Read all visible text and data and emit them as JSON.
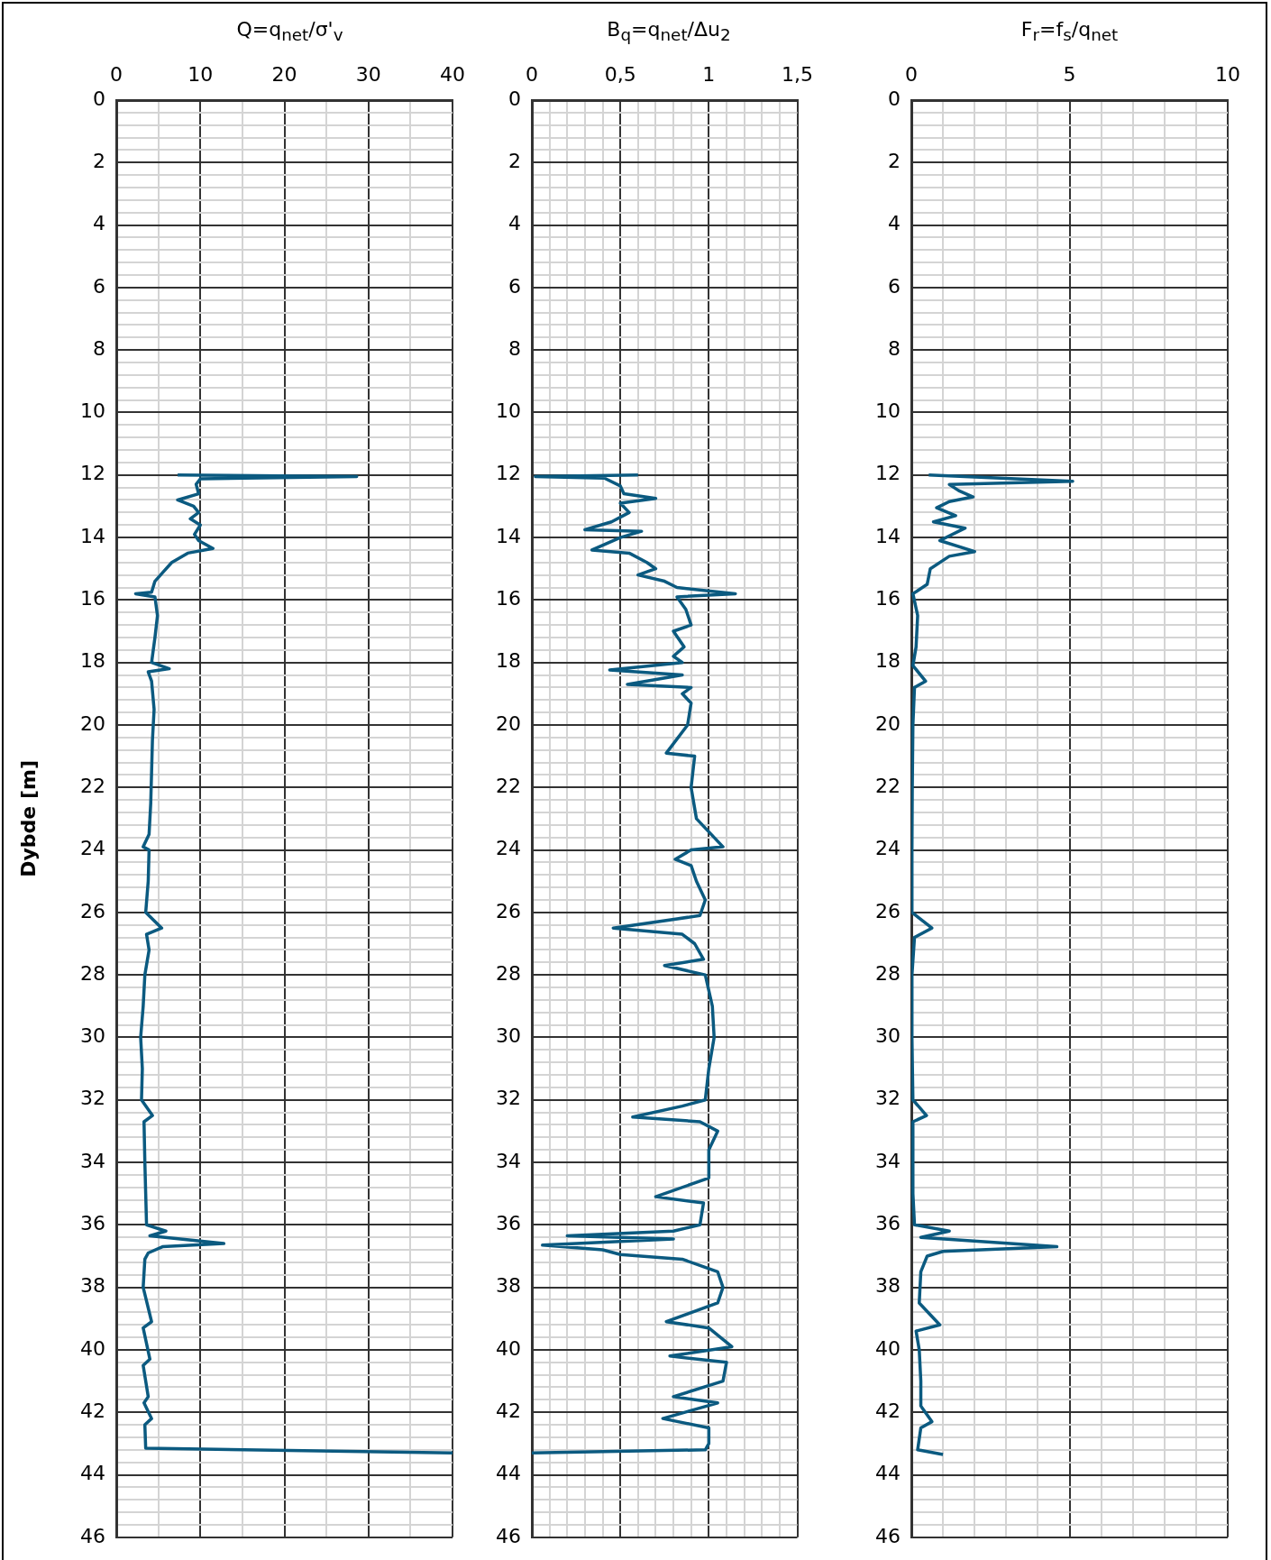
{
  "chart_data": [
    {
      "type": "line",
      "xlabel": "Q=q$_{net}$/σ'$_{v}$",
      "ylabel": "Dybde [m]",
      "grid": true,
      "xlim": [
        0,
        40
      ],
      "ylim": [
        46,
        0
      ],
      "xticks": [
        0,
        {
          "value": 5,
          "label": null
        },
        10,
        {
          "value": 15,
          "label": null
        },
        20,
        {
          "value": 25,
          "label": null
        },
        30,
        {
          "value": 35,
          "label": null
        },
        40
      ],
      "yticks": [
        0,
        {
          "value": 0.4,
          "label": null
        },
        {
          "value": 0.8,
          "label": null
        },
        {
          "value": 1.2,
          "label": null
        },
        {
          "value": 1.6,
          "label": null
        },
        2,
        {
          "value": 2.4,
          "label": null
        },
        {
          "value": 2.8,
          "label": null
        },
        {
          "value": 3.2,
          "label": null
        },
        {
          "value": 3.6,
          "label": null
        },
        4,
        {
          "value": 4.4,
          "label": null
        },
        {
          "value": 4.8,
          "label": null
        },
        {
          "value": 5.2,
          "label": null
        },
        {
          "value": 5.6,
          "label": null
        },
        6,
        {
          "value": 6.4,
          "label": null
        },
        {
          "value": 6.8,
          "label": null
        },
        {
          "value": 7.2,
          "label": null
        },
        {
          "value": 7.6,
          "label": null
        },
        8,
        {
          "value": 8.4,
          "label": null
        },
        {
          "value": 8.8,
          "label": null
        },
        {
          "value": 9.2,
          "label": null
        },
        {
          "value": 9.6,
          "label": null
        },
        10,
        {
          "value": 10.4,
          "label": null
        },
        {
          "value": 10.8,
          "label": null
        },
        {
          "value": 11.2,
          "label": null
        },
        {
          "value": 11.6,
          "label": null
        },
        12,
        {
          "value": 12.4,
          "label": null
        },
        {
          "value": 12.8,
          "label": null
        },
        {
          "value": 13.2,
          "label": null
        },
        {
          "value": 13.6,
          "label": null
        },
        14,
        {
          "value": 14.4,
          "label": null
        },
        {
          "value": 14.8,
          "label": null
        },
        {
          "value": 15.2,
          "label": null
        },
        {
          "value": 15.6,
          "label": null
        },
        16,
        {
          "value": 16.4,
          "label": null
        },
        {
          "value": 16.8,
          "label": null
        },
        {
          "value": 17.2,
          "label": null
        },
        {
          "value": 17.6,
          "label": null
        },
        18,
        {
          "value": 18.4,
          "label": null
        },
        {
          "value": 18.8,
          "label": null
        },
        {
          "value": 19.2,
          "label": null
        },
        {
          "value": 19.6,
          "label": null
        },
        20,
        {
          "value": 20.4,
          "label": null
        },
        {
          "value": 20.8,
          "label": null
        },
        {
          "value": 21.2,
          "label": null
        },
        {
          "value": 21.6,
          "label": null
        },
        22,
        {
          "value": 22.4,
          "label": null
        },
        {
          "value": 22.8,
          "label": null
        },
        {
          "value": 23.2,
          "label": null
        },
        {
          "value": 23.6,
          "label": null
        },
        24,
        {
          "value": 24.4,
          "label": null
        },
        {
          "value": 24.8,
          "label": null
        },
        {
          "value": 25.2,
          "label": null
        },
        {
          "value": 25.6,
          "label": null
        },
        26,
        {
          "value": 26.4,
          "label": null
        },
        {
          "value": 26.8,
          "label": null
        },
        {
          "value": 27.2,
          "label": null
        },
        {
          "value": 27.6,
          "label": null
        },
        28,
        {
          "value": 28.4,
          "label": null
        },
        {
          "value": 28.8,
          "label": null
        },
        {
          "value": 29.2,
          "label": null
        },
        {
          "value": 29.6,
          "label": null
        },
        30,
        {
          "value": 30.4,
          "label": null
        },
        {
          "value": 30.8,
          "label": null
        },
        {
          "value": 31.2,
          "label": null
        },
        {
          "value": 31.6,
          "label": null
        },
        32,
        {
          "value": 32.4,
          "label": null
        },
        {
          "value": 32.8,
          "label": null
        },
        {
          "value": 33.2,
          "label": null
        },
        {
          "value": 33.6,
          "label": null
        },
        34,
        {
          "value": 34.4,
          "label": null
        },
        {
          "value": 34.8,
          "label": null
        },
        {
          "value": 35.2,
          "label": null
        },
        {
          "value": 35.6,
          "label": null
        },
        36,
        {
          "value": 36.4,
          "label": null
        },
        {
          "value": 36.8,
          "label": null
        },
        {
          "value": 37.2,
          "label": null
        },
        {
          "value": 37.6,
          "label": null
        },
        38,
        {
          "value": 38.4,
          "label": null
        },
        {
          "value": 38.8,
          "label": null
        },
        {
          "value": 39.2,
          "label": null
        },
        {
          "value": 39.6,
          "label": null
        },
        40,
        {
          "value": 40.4,
          "label": null
        },
        {
          "value": 40.8,
          "label": null
        },
        {
          "value": 41.2,
          "label": null
        },
        {
          "value": 41.6,
          "label": null
        },
        42,
        {
          "value": 42.4,
          "label": null
        },
        {
          "value": 42.8,
          "label": null
        },
        {
          "value": 43.2,
          "label": null
        },
        {
          "value": 43.6,
          "label": null
        },
        44,
        {
          "value": 44.4,
          "label": null
        },
        {
          "value": 44.8,
          "label": null
        },
        {
          "value": 45.2,
          "label": null
        },
        {
          "value": 45.6,
          "label": null
        },
        46
      ],
      "series": [
        {
          "color": "#0b5a80",
          "x": [
            7.3,
            28.6,
            10,
            9.5,
            9.8,
            7.3,
            9.2,
            9.8,
            8.8,
            10,
            9.3,
            9.8,
            11.5,
            8.5,
            6.6,
            5.6,
            4.6,
            4.2,
            2.3,
            4.6,
            4.9,
            4.6,
            4.2,
            6.3,
            3.8,
            4.2,
            4.5,
            4.3,
            4.2,
            4.1,
            3.9,
            3.2,
            3.9,
            3.8,
            3.5,
            5.4,
            3.6,
            3.9,
            3.4,
            3.2,
            2.9,
            3.1,
            3.0,
            4.3,
            3.3,
            3.4,
            3.5,
            3.6,
            5.9,
            4.0,
            12.8,
            5.5,
            3.8,
            3.4,
            3.2,
            4.2,
            3.2,
            4.0,
            3.2,
            3.8,
            3.3,
            4.2,
            3.4,
            3.5,
            40
          ],
          "values": [
            12.0,
            12.05,
            12.12,
            12.3,
            12.6,
            12.8,
            13.0,
            13.2,
            13.4,
            13.6,
            13.9,
            14.1,
            14.35,
            14.5,
            14.8,
            15.1,
            15.4,
            15.75,
            15.8,
            15.9,
            16.5,
            17.2,
            18.0,
            18.2,
            18.3,
            18.6,
            19.5,
            20.5,
            21.5,
            22.5,
            23.5,
            23.9,
            24.0,
            25.0,
            26.0,
            26.5,
            26.7,
            27.2,
            28.0,
            29.0,
            30.0,
            31.0,
            32.0,
            32.5,
            32.7,
            34.0,
            35.0,
            36.0,
            36.2,
            36.35,
            36.6,
            36.7,
            36.9,
            37.1,
            38.0,
            39.1,
            39.3,
            40.3,
            40.5,
            41.5,
            41.7,
            42.2,
            42.4,
            43.15,
            43.3
          ]
        }
      ]
    },
    {
      "type": "line",
      "xlabel": "B$_{q}$=q$_{net}$/Δu$_{2}$",
      "grid": true,
      "xlim": [
        0,
        1.5
      ],
      "ylim": [
        46,
        0
      ],
      "xticks": [
        0,
        {
          "value": 0.1,
          "label": null
        },
        {
          "value": 0.2,
          "label": null
        },
        {
          "value": 0.3,
          "label": null
        },
        {
          "value": 0.4,
          "label": null
        },
        {
          "value": 0.5,
          "label": "0,5"
        },
        {
          "value": 0.6,
          "label": null
        },
        {
          "value": 0.7,
          "label": null
        },
        {
          "value": 0.8,
          "label": null
        },
        {
          "value": 0.9,
          "label": null
        },
        1,
        {
          "value": 1.1,
          "label": null
        },
        {
          "value": 1.2,
          "label": null
        },
        {
          "value": 1.3,
          "label": null
        },
        {
          "value": 1.4,
          "label": null
        },
        {
          "value": 1.5,
          "label": "1,5"
        }
      ],
      "yticks": [
        0,
        {
          "value": 0.4,
          "label": null
        },
        {
          "value": 0.8,
          "label": null
        },
        {
          "value": 1.2,
          "label": null
        },
        {
          "value": 1.6,
          "label": null
        },
        2,
        {
          "value": 2.4,
          "label": null
        },
        {
          "value": 2.8,
          "label": null
        },
        {
          "value": 3.2,
          "label": null
        },
        {
          "value": 3.6,
          "label": null
        },
        4,
        {
          "value": 4.4,
          "label": null
        },
        {
          "value": 4.8,
          "label": null
        },
        {
          "value": 5.2,
          "label": null
        },
        {
          "value": 5.6,
          "label": null
        },
        6,
        {
          "value": 6.4,
          "label": null
        },
        {
          "value": 6.8,
          "label": null
        },
        {
          "value": 7.2,
          "label": null
        },
        {
          "value": 7.6,
          "label": null
        },
        8,
        {
          "value": 8.4,
          "label": null
        },
        {
          "value": 8.8,
          "label": null
        },
        {
          "value": 9.2,
          "label": null
        },
        {
          "value": 9.6,
          "label": null
        },
        10,
        {
          "value": 10.4,
          "label": null
        },
        {
          "value": 10.8,
          "label": null
        },
        {
          "value": 11.2,
          "label": null
        },
        {
          "value": 11.6,
          "label": null
        },
        12,
        {
          "value": 12.4,
          "label": null
        },
        {
          "value": 12.8,
          "label": null
        },
        {
          "value": 13.2,
          "label": null
        },
        {
          "value": 13.6,
          "label": null
        },
        14,
        {
          "value": 14.4,
          "label": null
        },
        {
          "value": 14.8,
          "label": null
        },
        {
          "value": 15.2,
          "label": null
        },
        {
          "value": 15.6,
          "label": null
        },
        16,
        {
          "value": 16.4,
          "label": null
        },
        {
          "value": 16.8,
          "label": null
        },
        {
          "value": 17.2,
          "label": null
        },
        {
          "value": 17.6,
          "label": null
        },
        18,
        {
          "value": 18.4,
          "label": null
        },
        {
          "value": 18.8,
          "label": null
        },
        {
          "value": 19.2,
          "label": null
        },
        {
          "value": 19.6,
          "label": null
        },
        20,
        {
          "value": 20.4,
          "label": null
        },
        {
          "value": 20.8,
          "label": null
        },
        {
          "value": 21.2,
          "label": null
        },
        {
          "value": 21.6,
          "label": null
        },
        22,
        {
          "value": 22.4,
          "label": null
        },
        {
          "value": 22.8,
          "label": null
        },
        {
          "value": 23.2,
          "label": null
        },
        {
          "value": 23.6,
          "label": null
        },
        24,
        {
          "value": 24.4,
          "label": null
        },
        {
          "value": 24.8,
          "label": null
        },
        {
          "value": 25.2,
          "label": null
        },
        {
          "value": 25.6,
          "label": null
        },
        26,
        {
          "value": 26.4,
          "label": null
        },
        {
          "value": 26.8,
          "label": null
        },
        {
          "value": 27.2,
          "label": null
        },
        {
          "value": 27.6,
          "label": null
        },
        28,
        {
          "value": 28.4,
          "label": null
        },
        {
          "value": 28.8,
          "label": null
        },
        {
          "value": 29.2,
          "label": null
        },
        {
          "value": 29.6,
          "label": null
        },
        30,
        {
          "value": 30.4,
          "label": null
        },
        {
          "value": 30.8,
          "label": null
        },
        {
          "value": 31.2,
          "label": null
        },
        {
          "value": 31.6,
          "label": null
        },
        32,
        {
          "value": 32.4,
          "label": null
        },
        {
          "value": 32.8,
          "label": null
        },
        {
          "value": 33.2,
          "label": null
        },
        {
          "value": 33.6,
          "label": null
        },
        34,
        {
          "value": 34.4,
          "label": null
        },
        {
          "value": 34.8,
          "label": null
        },
        {
          "value": 35.2,
          "label": null
        },
        {
          "value": 35.6,
          "label": null
        },
        36,
        {
          "value": 36.4,
          "label": null
        },
        {
          "value": 36.8,
          "label": null
        },
        {
          "value": 37.2,
          "label": null
        },
        {
          "value": 37.6,
          "label": null
        },
        38,
        {
          "value": 38.4,
          "label": null
        },
        {
          "value": 38.8,
          "label": null
        },
        {
          "value": 39.2,
          "label": null
        },
        {
          "value": 39.6,
          "label": null
        },
        40,
        {
          "value": 40.4,
          "label": null
        },
        {
          "value": 40.8,
          "label": null
        },
        {
          "value": 41.2,
          "label": null
        },
        {
          "value": 41.6,
          "label": null
        },
        42,
        {
          "value": 42.4,
          "label": null
        },
        {
          "value": 42.8,
          "label": null
        },
        {
          "value": 43.2,
          "label": null
        },
        {
          "value": 43.6,
          "label": null
        },
        44,
        {
          "value": 44.4,
          "label": null
        },
        {
          "value": 44.8,
          "label": null
        },
        {
          "value": 45.2,
          "label": null
        },
        {
          "value": 45.6,
          "label": null
        },
        46
      ],
      "series": [
        {
          "color": "#0b5a80",
          "x": [
            0.6,
            0.02,
            0.41,
            0.5,
            0.52,
            0.7,
            0.5,
            0.55,
            0.45,
            0.3,
            0.62,
            0.5,
            0.34,
            0.55,
            0.65,
            0.7,
            0.6,
            0.75,
            0.82,
            1.15,
            0.82,
            0.87,
            0.9,
            0.8,
            0.86,
            0.8,
            0.85,
            0.44,
            0.85,
            0.54,
            0.9,
            0.85,
            0.9,
            0.88,
            0.76,
            0.92,
            0.9,
            0.93,
            1.08,
            0.9,
            0.81,
            0.9,
            0.93,
            0.98,
            0.95,
            0.46,
            0.85,
            0.92,
            0.97,
            0.75,
            0.98,
            1.02,
            1.03,
            1.0,
            0.98,
            0.85,
            0.57,
            0.95,
            1.05,
            1.0,
            1.0,
            0.7,
            0.97,
            0.95,
            0.8,
            0.2,
            0.8,
            0.06,
            0.4,
            0.5,
            0.85,
            0.95,
            1.05,
            1.08,
            1.05,
            0.76,
            1.0,
            1.13,
            0.78,
            1.1,
            1.08,
            0.8,
            1.05,
            0.74,
            1.0,
            1.0,
            0.98,
            0.0
          ],
          "values": [
            12.0,
            12.05,
            12.1,
            12.35,
            12.6,
            12.75,
            12.9,
            13.2,
            13.5,
            13.75,
            13.8,
            14.0,
            14.4,
            14.5,
            14.8,
            15.0,
            15.2,
            15.4,
            15.6,
            15.8,
            15.9,
            16.3,
            16.8,
            17.0,
            17.5,
            17.8,
            18.0,
            18.24,
            18.4,
            18.7,
            18.8,
            19.0,
            19.3,
            20.0,
            20.9,
            21.0,
            22.0,
            23.0,
            23.9,
            24.0,
            24.3,
            24.5,
            25.0,
            25.6,
            26.1,
            26.5,
            26.7,
            27.0,
            27.5,
            27.7,
            28.0,
            29.0,
            30.0,
            31.0,
            32.0,
            32.2,
            32.55,
            32.7,
            33.0,
            33.6,
            34.5,
            35.1,
            35.3,
            36.0,
            36.2,
            36.35,
            36.45,
            36.65,
            36.8,
            36.95,
            37.1,
            37.3,
            37.5,
            38.0,
            38.5,
            39.1,
            39.3,
            39.9,
            40.2,
            40.4,
            41.0,
            41.5,
            41.7,
            42.2,
            42.5,
            43.0,
            43.2,
            43.3
          ]
        }
      ]
    },
    {
      "type": "line",
      "xlabel": "F$_{r}$=f$_{s}$/q$_{net}$",
      "grid": true,
      "xlim": [
        0,
        10
      ],
      "ylim": [
        46,
        0
      ],
      "xticks": [
        0,
        {
          "value": 1,
          "label": null
        },
        {
          "value": 2,
          "label": null
        },
        {
          "value": 3,
          "label": null
        },
        {
          "value": 4,
          "label": null
        },
        5,
        {
          "value": 6,
          "label": null
        },
        {
          "value": 7,
          "label": null
        },
        {
          "value": 8,
          "label": null
        },
        {
          "value": 9,
          "label": null
        },
        10
      ],
      "yticks": [
        0,
        {
          "value": 0.4,
          "label": null
        },
        {
          "value": 0.8,
          "label": null
        },
        {
          "value": 1.2,
          "label": null
        },
        {
          "value": 1.6,
          "label": null
        },
        2,
        {
          "value": 2.4,
          "label": null
        },
        {
          "value": 2.8,
          "label": null
        },
        {
          "value": 3.2,
          "label": null
        },
        {
          "value": 3.6,
          "label": null
        },
        4,
        {
          "value": 4.4,
          "label": null
        },
        {
          "value": 4.8,
          "label": null
        },
        {
          "value": 5.2,
          "label": null
        },
        {
          "value": 5.6,
          "label": null
        },
        6,
        {
          "value": 6.4,
          "label": null
        },
        {
          "value": 6.8,
          "label": null
        },
        {
          "value": 7.2,
          "label": null
        },
        {
          "value": 7.6,
          "label": null
        },
        8,
        {
          "value": 8.4,
          "label": null
        },
        {
          "value": 8.8,
          "label": null
        },
        {
          "value": 9.2,
          "label": null
        },
        {
          "value": 9.6,
          "label": null
        },
        10,
        {
          "value": 10.4,
          "label": null
        },
        {
          "value": 10.8,
          "label": null
        },
        {
          "value": 11.2,
          "label": null
        },
        {
          "value": 11.6,
          "label": null
        },
        12,
        {
          "value": 12.4,
          "label": null
        },
        {
          "value": 12.8,
          "label": null
        },
        {
          "value": 13.2,
          "label": null
        },
        {
          "value": 13.6,
          "label": null
        },
        14,
        {
          "value": 14.4,
          "label": null
        },
        {
          "value": 14.8,
          "label": null
        },
        {
          "value": 15.2,
          "label": null
        },
        {
          "value": 15.6,
          "label": null
        },
        16,
        {
          "value": 16.4,
          "label": null
        },
        {
          "value": 16.8,
          "label": null
        },
        {
          "value": 17.2,
          "label": null
        },
        {
          "value": 17.6,
          "label": null
        },
        18,
        {
          "value": 18.4,
          "label": null
        },
        {
          "value": 18.8,
          "label": null
        },
        {
          "value": 19.2,
          "label": null
        },
        {
          "value": 19.6,
          "label": null
        },
        20,
        {
          "value": 20.4,
          "label": null
        },
        {
          "value": 20.8,
          "label": null
        },
        {
          "value": 21.2,
          "label": null
        },
        {
          "value": 21.6,
          "label": null
        },
        22,
        {
          "value": 22.4,
          "label": null
        },
        {
          "value": 22.8,
          "label": null
        },
        {
          "value": 23.2,
          "label": null
        },
        {
          "value": 23.6,
          "label": null
        },
        24,
        {
          "value": 24.4,
          "label": null
        },
        {
          "value": 24.8,
          "label": null
        },
        {
          "value": 25.2,
          "label": null
        },
        {
          "value": 25.6,
          "label": null
        },
        26,
        {
          "value": 26.4,
          "label": null
        },
        {
          "value": 26.8,
          "label": null
        },
        {
          "value": 27.2,
          "label": null
        },
        {
          "value": 27.6,
          "label": null
        },
        28,
        {
          "value": 28.4,
          "label": null
        },
        {
          "value": 28.8,
          "label": null
        },
        {
          "value": 29.2,
          "label": null
        },
        {
          "value": 29.6,
          "label": null
        },
        30,
        {
          "value": 30.4,
          "label": null
        },
        {
          "value": 30.8,
          "label": null
        },
        {
          "value": 31.2,
          "label": null
        },
        {
          "value": 31.6,
          "label": null
        },
        32,
        {
          "value": 32.4,
          "label": null
        },
        {
          "value": 32.8,
          "label": null
        },
        {
          "value": 33.2,
          "label": null
        },
        {
          "value": 33.6,
          "label": null
        },
        34,
        {
          "value": 34.4,
          "label": null
        },
        {
          "value": 34.8,
          "label": null
        },
        {
          "value": 35.2,
          "label": null
        },
        {
          "value": 35.6,
          "label": null
        },
        36,
        {
          "value": 36.4,
          "label": null
        },
        {
          "value": 36.8,
          "label": null
        },
        {
          "value": 37.2,
          "label": null
        },
        {
          "value": 37.6,
          "label": null
        },
        38,
        {
          "value": 38.4,
          "label": null
        },
        {
          "value": 38.8,
          "label": null
        },
        {
          "value": 39.2,
          "label": null
        },
        {
          "value": 39.6,
          "label": null
        },
        40,
        {
          "value": 40.4,
          "label": null
        },
        {
          "value": 40.8,
          "label": null
        },
        {
          "value": 41.2,
          "label": null
        },
        {
          "value": 41.6,
          "label": null
        },
        42,
        {
          "value": 42.4,
          "label": null
        },
        {
          "value": 42.8,
          "label": null
        },
        {
          "value": 43.2,
          "label": null
        },
        {
          "value": 43.6,
          "label": null
        },
        44,
        {
          "value": 44.4,
          "label": null
        },
        {
          "value": 44.8,
          "label": null
        },
        {
          "value": 45.2,
          "label": null
        },
        {
          "value": 45.6,
          "label": null
        },
        46
      ],
      "series": [
        {
          "color": "#0b5a80",
          "x": [
            0.55,
            5.1,
            1.2,
            1.5,
            1.95,
            1.2,
            0.8,
            1.4,
            0.7,
            1.7,
            0.9,
            2.0,
            1.2,
            0.6,
            0.5,
            0.05,
            0.2,
            0.15,
            0.05,
            0.45,
            0.1,
            0.05,
            0.03,
            0.02,
            0.02,
            0.65,
            0.1,
            0.02,
            0.02,
            0.05,
            0.48,
            0.05,
            0.05,
            0.1,
            1.2,
            0.3,
            4.6,
            1.0,
            0.5,
            0.3,
            0.25,
            0.9,
            0.15,
            0.25,
            0.3,
            0.3,
            0.65,
            0.3,
            0.2,
            1.0
          ],
          "values": [
            12.0,
            12.2,
            12.3,
            12.5,
            12.7,
            12.85,
            13.05,
            13.3,
            13.5,
            13.7,
            14.1,
            14.45,
            14.6,
            15.0,
            15.5,
            15.8,
            16.5,
            17.5,
            18.1,
            18.6,
            18.8,
            20.0,
            22.0,
            24.0,
            26.0,
            26.5,
            26.8,
            28.0,
            30.0,
            32.0,
            32.5,
            32.7,
            35.0,
            36.0,
            36.2,
            36.4,
            36.7,
            36.85,
            37.0,
            37.5,
            38.5,
            39.2,
            39.4,
            40.0,
            41.0,
            41.8,
            42.3,
            42.5,
            43.2,
            43.35
          ]
        }
      ]
    }
  ]
}
